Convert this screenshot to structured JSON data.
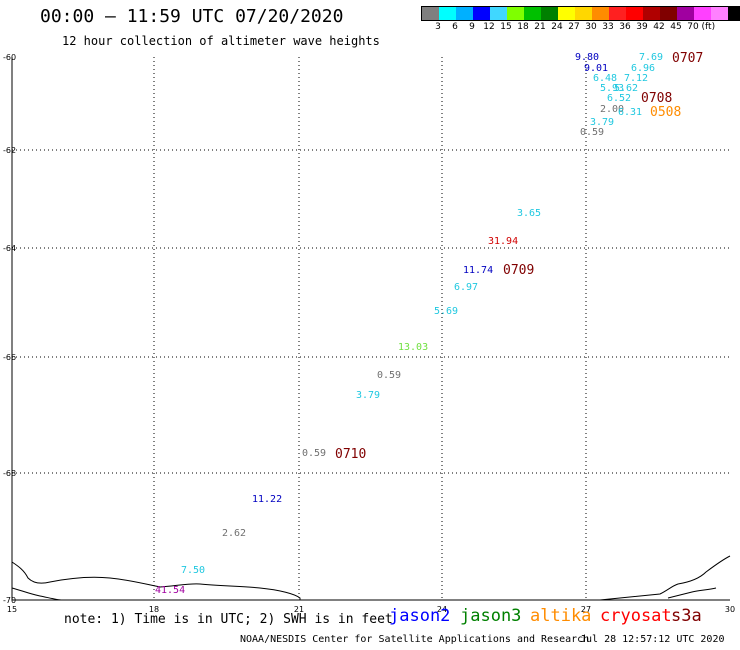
{
  "header": {
    "title": "00:00 – 11:59 UTC 07/20/2020",
    "subtitle": "12 hour collection of altimeter wave heights"
  },
  "legend": {
    "colors": [
      "#7f7f7f",
      "#00ffff",
      "#00b0ff",
      "#0000ff",
      "#40d7ff",
      "#7fff00",
      "#00c000",
      "#008000",
      "#ffff00",
      "#ffd700",
      "#ff8c00",
      "#ff2020",
      "#ff0000",
      "#b00000",
      "#800000",
      "#a000a0",
      "#ff40ff",
      "#ff80ff",
      "#000000"
    ],
    "ticks": [
      "3",
      "6",
      "9",
      "12",
      "15",
      "18",
      "21",
      "24",
      "27",
      "30",
      "33",
      "36",
      "39",
      "42",
      "45",
      "70"
    ],
    "unit": "(ft)"
  },
  "map": {
    "lat_labels": [
      "-60",
      "-62",
      "-64",
      "-66",
      "-68",
      "-70"
    ],
    "lon_labels": [
      "15",
      "18",
      "21",
      "24",
      "27",
      "30"
    ],
    "lat_range": [
      -70,
      -60
    ],
    "lon_range": [
      15,
      30
    ],
    "grid": "dotted"
  },
  "readings": [
    {
      "text": "9.80",
      "color": "#0000c0"
    },
    {
      "text": "7.69",
      "color": "#20c8e0"
    },
    {
      "text": "0707",
      "color": "#800000"
    },
    {
      "text": "9.01",
      "color": "#0000c0"
    },
    {
      "text": "6.96",
      "color": "#20c8e0"
    },
    {
      "text": "6.48",
      "color": "#20c8e0"
    },
    {
      "text": "7.12",
      "color": "#20c8e0"
    },
    {
      "text": "5.93",
      "color": "#20c8e0"
    },
    {
      "text": "5.62",
      "color": "#20c8e0"
    },
    {
      "text": "6.52",
      "color": "#20c8e0"
    },
    {
      "text": "0708",
      "color": "#800000"
    },
    {
      "text": "2.00",
      "color": "#707070"
    },
    {
      "text": "6.31",
      "color": "#20c8e0"
    },
    {
      "text": "0508",
      "color": "#ff8c00"
    },
    {
      "text": "3.79",
      "color": "#20c8e0"
    },
    {
      "text": "0.59",
      "color": "#707070"
    },
    {
      "text": "3.65",
      "color": "#20c8e0"
    },
    {
      "text": "31.94",
      "color": "#d00000"
    },
    {
      "text": "11.74",
      "color": "#0000c0"
    },
    {
      "text": "0709",
      "color": "#800000"
    },
    {
      "text": "6.97",
      "color": "#20c8e0"
    },
    {
      "text": "5.69",
      "color": "#20c8e0"
    },
    {
      "text": "13.03",
      "color": "#70e040"
    },
    {
      "text": "0.59",
      "color": "#707070"
    },
    {
      "text": "3.79",
      "color": "#20c8e0"
    },
    {
      "text": "0.59",
      "color": "#707070"
    },
    {
      "text": "0710",
      "color": "#800000"
    },
    {
      "text": "11.22",
      "color": "#0000c0"
    },
    {
      "text": "2.62",
      "color": "#707070"
    },
    {
      "text": "7.50",
      "color": "#20c8e0"
    },
    {
      "text": "41.54",
      "color": "#a000a0"
    }
  ],
  "footer": {
    "note": "note: 1) Time is in UTC; 2) SWH is in feet",
    "satellites": [
      {
        "name": "jason2",
        "color": "#0000ff"
      },
      {
        "name": "jason3",
        "color": "#008000"
      },
      {
        "name": "altika",
        "color": "#ff8c00"
      },
      {
        "name": "cryosat",
        "color": "#ff0000"
      },
      {
        "name": "s3a",
        "color": "#800000"
      }
    ],
    "credit": "NOAA/NESDIS Center for Satellite Applications and Research",
    "timestamp": "Jul 28 12:57:12 UTC 2020"
  }
}
